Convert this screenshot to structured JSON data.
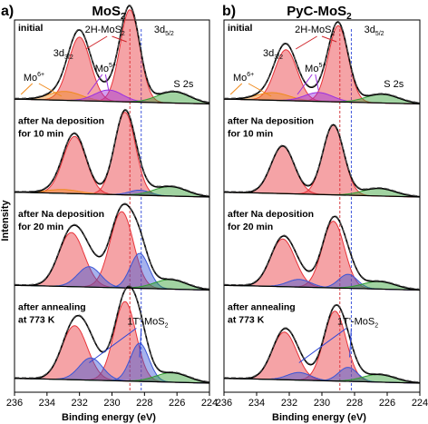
{
  "figure": {
    "y_axis_label": "Intensity",
    "colors": {
      "mos2_2h": "#e8343a",
      "mos2_1t": "#3a55d6",
      "mo6": "#f08a1c",
      "mo5": "#9b2fe0",
      "s2s": "#2f9e2f",
      "envelope": "#000000",
      "fit_dashed": "#555555",
      "marker_red": "#d0242a",
      "marker_blue": "#2b45d8"
    }
  },
  "chart_data": [
    {
      "type": "line",
      "panel_label": "a)",
      "title": "MoS2",
      "xlabel": "Binding energy (eV)",
      "ylabel": "Intensity",
      "xlim": [
        236,
        224
      ],
      "xticks": [
        "236",
        "234",
        "232",
        "230",
        "228",
        "226",
        "224"
      ],
      "reference_lines_ev": [
        {
          "ev": 228.9,
          "color": "red"
        },
        {
          "ev": 228.2,
          "color": "blue"
        }
      ],
      "annotations": {
        "phase_2h": "2H-MoS",
        "phase_2h_sub": "2",
        "d32": "3d",
        "d32_sub": "3/2",
        "d52": "3d",
        "d52_sub": "5/2",
        "mo6": "Mo",
        "mo6_sup": "6+",
        "mo5": "Mo",
        "mo5_sup": "5+",
        "s2s": "S 2s",
        "phase_1t": "1T'-MoS",
        "phase_1t_sub": "2"
      },
      "spectra": [
        {
          "label_lines": [
            "initial"
          ],
          "components": [
            {
              "name": "2H-MoS2 3d3/2",
              "center_ev": 232.0,
              "height": 1.0,
              "fwhm": 0.95
            },
            {
              "name": "2H-MoS2 3d5/2",
              "center_ev": 228.9,
              "height": 1.45,
              "fwhm": 0.85
            },
            {
              "name": "Mo6+",
              "center_ev": 232.9,
              "height": 0.14,
              "fwhm": 1.4
            },
            {
              "name": "Mo5+",
              "center_ev": 230.2,
              "height": 0.18,
              "fwhm": 1.2
            },
            {
              "name": "S 2s",
              "center_ev": 226.2,
              "height": 0.18,
              "fwhm": 1.4
            }
          ]
        },
        {
          "label_lines": [
            "after Na deposition",
            "for 10 min"
          ],
          "components": [
            {
              "name": "2H-MoS2 3d3/2",
              "center_ev": 232.3,
              "height": 0.9,
              "fwhm": 1.0
            },
            {
              "name": "2H-MoS2 3d5/2",
              "center_ev": 229.2,
              "height": 1.3,
              "fwhm": 0.9
            },
            {
              "name": "Mo6+",
              "center_ev": 233.0,
              "height": 0.06,
              "fwhm": 1.4
            },
            {
              "name": "1T'-MoS2",
              "center_ev": 228.3,
              "height": 0.08,
              "fwhm": 0.9
            },
            {
              "name": "S 2s",
              "center_ev": 226.4,
              "height": 0.15,
              "fwhm": 1.4
            }
          ]
        },
        {
          "label_lines": [
            "after Na deposition",
            "for 20 min"
          ],
          "components": [
            {
              "name": "2H-MoS2 3d3/2",
              "center_ev": 232.5,
              "height": 0.85,
              "fwhm": 1.1
            },
            {
              "name": "2H-MoS2 3d5/2",
              "center_ev": 229.4,
              "height": 1.2,
              "fwhm": 1.0
            },
            {
              "name": "1T'-MoS2 3d3/2",
              "center_ev": 231.4,
              "height": 0.32,
              "fwhm": 1.0
            },
            {
              "name": "1T'-MoS2 3d5/2",
              "center_ev": 228.3,
              "height": 0.55,
              "fwhm": 0.8
            },
            {
              "name": "S 2s",
              "center_ev": 226.4,
              "height": 0.15,
              "fwhm": 1.4
            }
          ]
        },
        {
          "label_lines": [
            "after annealing",
            "at 773 K"
          ],
          "components": [
            {
              "name": "2H-MoS2 3d3/2",
              "center_ev": 232.3,
              "height": 0.85,
              "fwhm": 1.1
            },
            {
              "name": "2H-MoS2 3d5/2",
              "center_ev": 229.2,
              "height": 1.25,
              "fwhm": 0.95
            },
            {
              "name": "1T'-MoS2 3d3/2",
              "center_ev": 231.3,
              "height": 0.35,
              "fwhm": 1.0
            },
            {
              "name": "1T'-MoS2 3d5/2",
              "center_ev": 228.3,
              "height": 0.6,
              "fwhm": 0.8
            },
            {
              "name": "S 2s",
              "center_ev": 226.3,
              "height": 0.15,
              "fwhm": 1.4
            }
          ]
        }
      ]
    },
    {
      "type": "line",
      "panel_label": "b)",
      "title": "PyC-MoS2",
      "xlabel": "Binding energy (eV)",
      "ylabel": "",
      "xlim": [
        236,
        224
      ],
      "xticks": [
        "236",
        "234",
        "232",
        "230",
        "228",
        "226",
        "224"
      ],
      "reference_lines_ev": [
        {
          "ev": 228.9,
          "color": "red"
        },
        {
          "ev": 228.2,
          "color": "blue"
        }
      ],
      "annotations": {
        "phase_2h": "2H-MoS",
        "phase_2h_sub": "2",
        "d32": "3d",
        "d32_sub": "3/2",
        "d52": "3d",
        "d52_sub": "5/2",
        "mo6": "Mo",
        "mo6_sup": "6+",
        "mo5": "Mo",
        "mo5_sup": "5+",
        "s2s": "S 2s",
        "phase_1t": "1T'-MoS",
        "phase_1t_sub": "2"
      },
      "spectra": [
        {
          "label_lines": [
            "initial"
          ],
          "components": [
            {
              "name": "2H-MoS2 3d3/2",
              "center_ev": 232.2,
              "height": 0.8,
              "fwhm": 0.95
            },
            {
              "name": "2H-MoS2 3d5/2",
              "center_ev": 229.0,
              "height": 1.2,
              "fwhm": 0.85
            },
            {
              "name": "Mo6+",
              "center_ev": 233.0,
              "height": 0.12,
              "fwhm": 1.4
            },
            {
              "name": "Mo5+",
              "center_ev": 230.2,
              "height": 0.14,
              "fwhm": 1.2
            },
            {
              "name": "S 2s",
              "center_ev": 226.3,
              "height": 0.14,
              "fwhm": 1.4
            }
          ]
        },
        {
          "label_lines": [
            "after Na deposition",
            "for 10 min"
          ],
          "components": [
            {
              "name": "2H-MoS2 3d3/2",
              "center_ev": 232.4,
              "height": 0.75,
              "fwhm": 1.0
            },
            {
              "name": "2H-MoS2 3d5/2",
              "center_ev": 229.3,
              "height": 1.1,
              "fwhm": 0.9
            },
            {
              "name": "S 2s",
              "center_ev": 226.5,
              "height": 0.12,
              "fwhm": 1.4
            }
          ]
        },
        {
          "label_lines": [
            "after Na deposition",
            "for 20 min"
          ],
          "components": [
            {
              "name": "2H-MoS2 3d3/2",
              "center_ev": 232.4,
              "height": 0.75,
              "fwhm": 1.05
            },
            {
              "name": "2H-MoS2 3d5/2",
              "center_ev": 229.3,
              "height": 1.05,
              "fwhm": 0.95
            },
            {
              "name": "1T'-MoS2 3d3/2",
              "center_ev": 231.4,
              "height": 0.12,
              "fwhm": 1.0
            },
            {
              "name": "1T'-MoS2 3d5/2",
              "center_ev": 228.4,
              "height": 0.22,
              "fwhm": 0.8
            },
            {
              "name": "S 2s",
              "center_ev": 226.5,
              "height": 0.12,
              "fwhm": 1.4
            }
          ]
        },
        {
          "label_lines": [
            "after annealing",
            "at 773 K"
          ],
          "components": [
            {
              "name": "2H-MoS2 3d3/2",
              "center_ev": 232.3,
              "height": 0.75,
              "fwhm": 1.05
            },
            {
              "name": "2H-MoS2 3d5/2",
              "center_ev": 229.2,
              "height": 1.1,
              "fwhm": 0.95
            },
            {
              "name": "1T'-MoS2 3d3/2",
              "center_ev": 231.4,
              "height": 0.12,
              "fwhm": 1.0
            },
            {
              "name": "1T'-MoS2 3d5/2",
              "center_ev": 228.4,
              "height": 0.22,
              "fwhm": 0.8
            },
            {
              "name": "S 2s",
              "center_ev": 226.5,
              "height": 0.12,
              "fwhm": 1.4
            }
          ]
        }
      ]
    }
  ]
}
